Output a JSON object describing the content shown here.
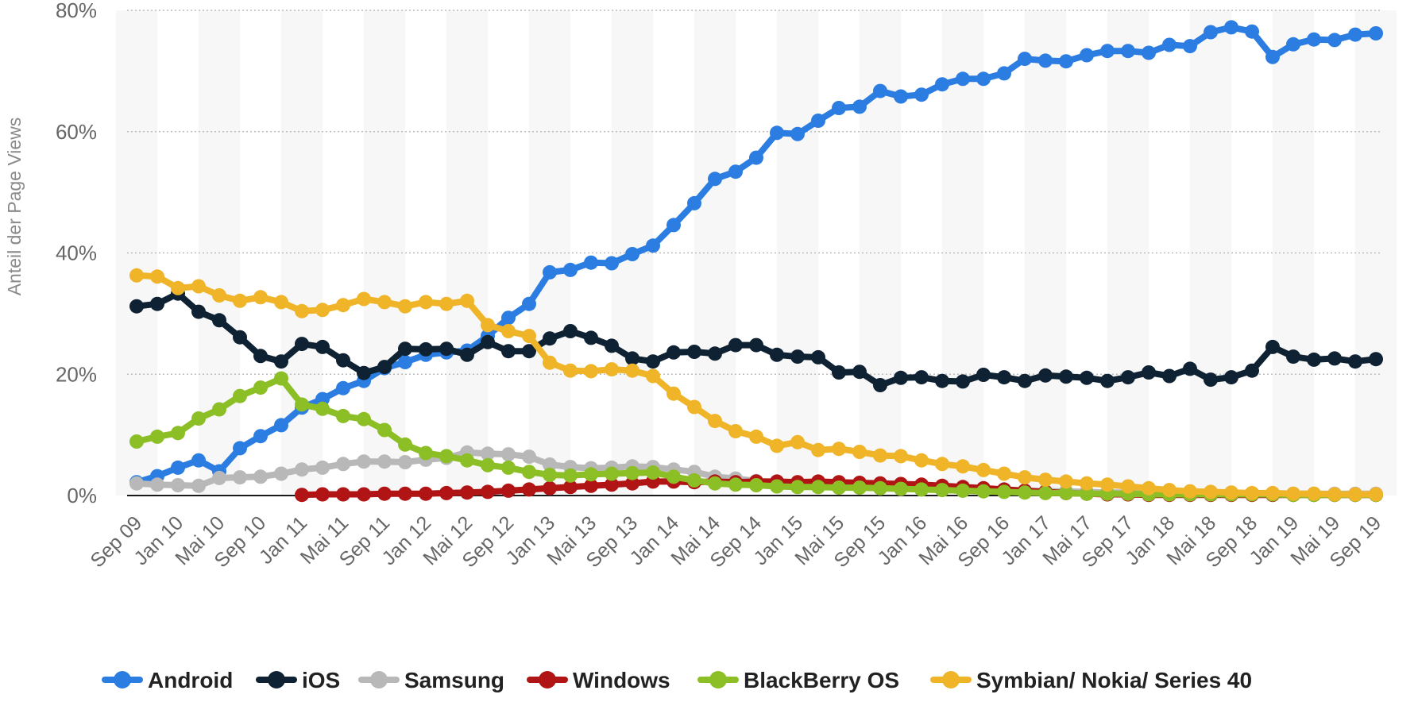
{
  "chart_data": {
    "type": "line",
    "title": "",
    "xlabel": "",
    "ylabel": "Anteil der Page Views",
    "ylim": [
      0,
      80
    ],
    "yticks": [
      "0%",
      "20%",
      "40%",
      "60%",
      "80%"
    ],
    "grid": true,
    "legend_position": "bottom",
    "x_tick_labels": [
      "Sep 09",
      "Jan 10",
      "Mai 10",
      "Sep 10",
      "Jan 11",
      "Mai 11",
      "Sep 11",
      "Jan 12",
      "Mai 12",
      "Sep 12",
      "Jan 13",
      "Mai 13",
      "Sep 13",
      "Jan 14",
      "Mai 14",
      "Sep 14",
      "Jan 15",
      "Mai 15",
      "Sep 15",
      "Jan 16",
      "Mai 16",
      "Sep 16",
      "Jan 17",
      "Mai 17",
      "Sep 17",
      "Jan 18",
      "Mai 18",
      "Sep 18",
      "Jan 19",
      "Mai 19",
      "Sep 19"
    ],
    "series": [
      {
        "name": "Android",
        "color": "#2b7de2",
        "start": 0,
        "values": [
          2.2,
          3.2,
          4.6,
          5.8,
          4,
          7.8,
          9.8,
          11.6,
          14.5,
          15.9,
          17.7,
          18.9,
          21,
          22,
          23.2,
          23.6,
          23.9,
          26.3,
          29.3,
          31.6,
          36.8,
          37.2,
          38.4,
          38.3,
          39.8,
          41.2,
          44.6,
          48.2,
          52.2,
          53.4,
          55.7,
          59.8,
          59.6,
          61.8,
          63.9,
          64.1,
          66.7,
          65.8,
          66.1,
          67.8,
          68.7,
          68.7,
          69.6,
          72,
          71.7,
          71.6,
          72.6,
          73.3,
          73.3,
          73,
          74.3,
          74.1,
          76.4,
          77.2,
          76.5,
          72.3,
          74.4,
          75.2,
          75.1,
          76,
          76.2
        ]
      },
      {
        "name": "iOS",
        "color": "#0f2233",
        "start": 0,
        "values": [
          31.2,
          31.6,
          33.3,
          30.3,
          28.9,
          26.1,
          23,
          22.1,
          25,
          24.5,
          22.3,
          20.2,
          21.2,
          24.2,
          24.1,
          24.2,
          23.2,
          25.3,
          23.8,
          23.8,
          25.9,
          27.1,
          26,
          24.7,
          22.6,
          22.1,
          23.6,
          23.7,
          23.4,
          24.8,
          24.8,
          23.2,
          22.9,
          22.8,
          20.3,
          20.4,
          18.2,
          19.4,
          19.5,
          18.9,
          18.8,
          19.9,
          19.5,
          18.9,
          19.8,
          19.6,
          19.4,
          18.9,
          19.5,
          20.3,
          19.7,
          20.9,
          19.1,
          19.5,
          20.6,
          24.5,
          22.9,
          22.4,
          22.6,
          22.1,
          22.5
        ]
      },
      {
        "name": "Samsung",
        "color": "#b8b8b8",
        "start": 0,
        "values": [
          2,
          1.8,
          1.7,
          1.6,
          2.9,
          3,
          3.1,
          3.6,
          4.3,
          4.6,
          5.2,
          5.6,
          5.6,
          5.5,
          5.9,
          6.2,
          7.1,
          6.9,
          6.8,
          6.4,
          5.1,
          4.7,
          4.5,
          4.6,
          4.8,
          4.7,
          4.3,
          3.9,
          3.1,
          2.8,
          2.4,
          2.2,
          2,
          1.9,
          1.7,
          1.6,
          1.5,
          1.4,
          1.3,
          1.2,
          1.1,
          1,
          0.9,
          0.8,
          0.7,
          0.7,
          0.6,
          0.5,
          0.5,
          0.4,
          0.4,
          0.3,
          0.3,
          0.3,
          0.3,
          0.3,
          0.3,
          0.3,
          0.3,
          0.3,
          0.3
        ]
      },
      {
        "name": "Windows",
        "color": "#b11414",
        "start": 8,
        "values": [
          0.1,
          0.2,
          0.2,
          0.2,
          0.3,
          0.3,
          0.3,
          0.4,
          0.5,
          0.6,
          0.8,
          1,
          1.2,
          1.4,
          1.6,
          1.8,
          2,
          2.3,
          2.3,
          2.2,
          2.3,
          2.2,
          2.3,
          2.3,
          2.2,
          2.3,
          2.2,
          2.1,
          2,
          1.9,
          1.8,
          1.6,
          1.4,
          1.2,
          1,
          0.8,
          0.6,
          0.4,
          0.3,
          0.2,
          0.2,
          0.1,
          0.1,
          0.1,
          0.1,
          0.1,
          0.1,
          0.1,
          0.1,
          0.1,
          0.1,
          0.1,
          0.1
        ]
      },
      {
        "name": "BlackBerry OS",
        "color": "#8cbf26",
        "start": 0,
        "values": [
          8.9,
          9.7,
          10.3,
          12.7,
          14.2,
          16.4,
          17.8,
          19.3,
          15,
          14.3,
          13.1,
          12.6,
          10.8,
          8.4,
          7,
          6.5,
          5.8,
          5,
          4.6,
          3.9,
          3.4,
          3.3,
          3.5,
          3.6,
          3.7,
          3.8,
          3.1,
          2.5,
          2,
          1.8,
          1.7,
          1.5,
          1.4,
          1.4,
          1.3,
          1.3,
          1.2,
          1.1,
          1,
          0.9,
          0.8,
          0.7,
          0.6,
          0.5,
          0.4,
          0.4,
          0.3,
          0.3,
          0.3,
          0.2,
          0.2,
          0.2,
          0.2,
          0.2,
          0.2,
          0.2,
          0.1,
          0.1,
          0.1,
          0.1,
          0.1
        ]
      },
      {
        "name": "Symbian/ Nokia/ Series 40",
        "color": "#f0b429",
        "start": 0,
        "values": [
          36.3,
          36.1,
          34.2,
          34.5,
          33,
          32.1,
          32.7,
          31.9,
          30.4,
          30.6,
          31.4,
          32.4,
          31.9,
          31.2,
          31.9,
          31.6,
          32.1,
          28.1,
          27.1,
          26.3,
          21.9,
          20.6,
          20.5,
          20.8,
          20.6,
          19.7,
          16.8,
          14.6,
          12.3,
          10.6,
          9.7,
          8.2,
          8.8,
          7.5,
          7.7,
          7.2,
          6.6,
          6.5,
          5.8,
          5.2,
          4.8,
          4.2,
          3.6,
          3,
          2.6,
          2.3,
          2,
          1.8,
          1.5,
          1.2,
          0.9,
          0.7,
          0.6,
          0.5,
          0.4,
          0.4,
          0.3,
          0.3,
          0.2,
          0.2,
          0.2
        ]
      }
    ]
  }
}
